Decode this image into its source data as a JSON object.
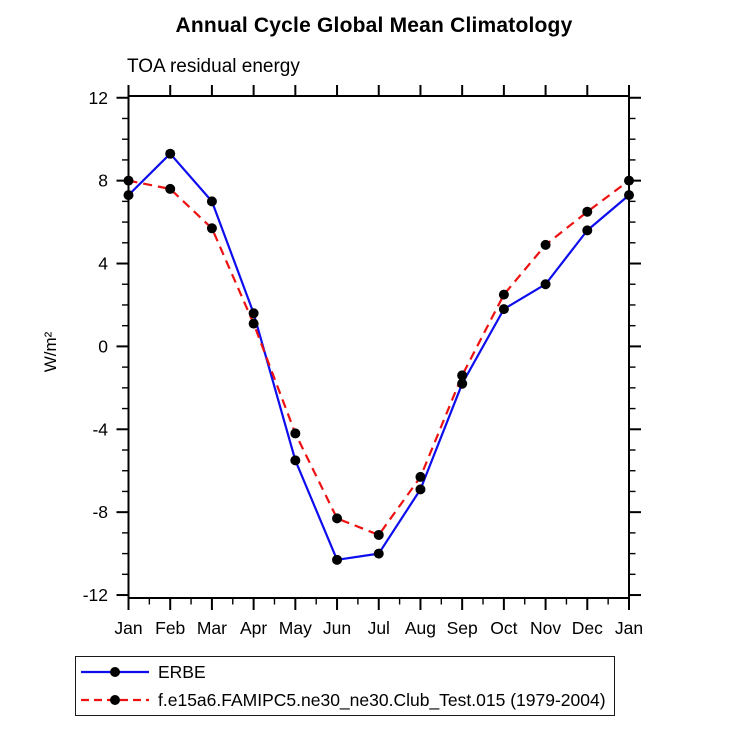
{
  "chart_data": {
    "type": "line",
    "title": "Annual Cycle Global Mean Climatology",
    "subtitle": "TOA residual energy",
    "xlabel": "",
    "ylabel": "W/m²",
    "categories": [
      "Jan",
      "Feb",
      "Mar",
      "Apr",
      "May",
      "Jun",
      "Jul",
      "Aug",
      "Sep",
      "Oct",
      "Nov",
      "Dec",
      "Jan"
    ],
    "ylim": [
      -12,
      12
    ],
    "yticks_major": [
      -12,
      -8,
      -4,
      0,
      4,
      8,
      12
    ],
    "ytick_minor_step": 1,
    "xtick_minor": "half-month",
    "grid": false,
    "frame": true,
    "marker": {
      "shape": "circle",
      "color": "#000000"
    },
    "legend_position": "bottom-left-box",
    "series": [
      {
        "name": "ERBE",
        "color": "#0d0dee",
        "style": "solid",
        "values": [
          7.3,
          9.3,
          7.0,
          1.6,
          -5.5,
          -10.3,
          -10.0,
          -6.9,
          -1.8,
          1.8,
          3.0,
          5.6,
          7.3
        ]
      },
      {
        "name": "f.e15a6.FAMIPC5.ne30_ne30.Club_Test.015 (1979-2004)",
        "color": "#ee1111",
        "style": "dashed",
        "values": [
          8.0,
          7.6,
          5.7,
          1.1,
          -4.2,
          -8.3,
          -9.1,
          -6.3,
          -1.4,
          2.5,
          4.9,
          6.5,
          8.0
        ]
      }
    ]
  }
}
